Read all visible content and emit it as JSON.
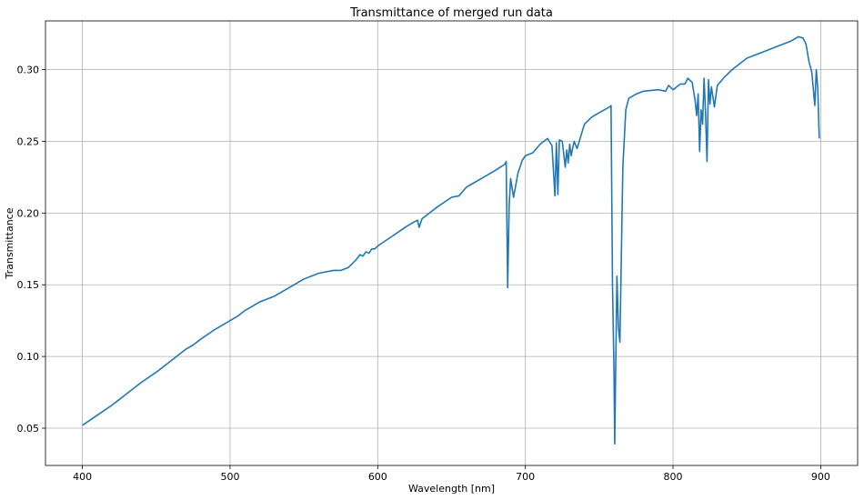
{
  "chart_data": {
    "type": "line",
    "title": "Transmittance of merged run data",
    "xlabel": "Wavelength [nm]",
    "ylabel": "Transmittance",
    "xlim": [
      375,
      925
    ],
    "ylim": [
      0.024,
      0.334
    ],
    "xticks": [
      400,
      500,
      600,
      700,
      800,
      900
    ],
    "xtick_labels": [
      "400",
      "500",
      "600",
      "700",
      "800",
      "900"
    ],
    "yticks": [
      0.05,
      0.1,
      0.15,
      0.2,
      0.25,
      0.3
    ],
    "ytick_labels": [
      "0.05",
      "0.10",
      "0.15",
      "0.20",
      "0.25",
      "0.30"
    ],
    "grid": true,
    "series": [
      {
        "color": "#1f77b4",
        "x": [
          400,
          410,
          420,
          430,
          440,
          450,
          460,
          470,
          475,
          480,
          490,
          500,
          505,
          510,
          520,
          530,
          540,
          550,
          560,
          570,
          575,
          580,
          585,
          588,
          590,
          592,
          594,
          596,
          598,
          600,
          610,
          620,
          625,
          627,
          628,
          630,
          640,
          650,
          655,
          660,
          665,
          670,
          680,
          686,
          687,
          688,
          689,
          690,
          692,
          695,
          698,
          700,
          705,
          710,
          715,
          718,
          719,
          720,
          721,
          722,
          723,
          725,
          727,
          728,
          729,
          730,
          731,
          733,
          735,
          740,
          745,
          750,
          757,
          758,
          759,
          760,
          760.5,
          761,
          762,
          763,
          764,
          766,
          768,
          770,
          775,
          780,
          790,
          795,
          797,
          800,
          805,
          808,
          810,
          813,
          815,
          816,
          817,
          818,
          819,
          820,
          821,
          822,
          823,
          824,
          825,
          826,
          828,
          830,
          835,
          840,
          850,
          860,
          870,
          880,
          885,
          888,
          890,
          892,
          894,
          896,
          897,
          898,
          899
        ],
        "values": [
          0.052,
          0.059,
          0.066,
          0.074,
          0.082,
          0.089,
          0.097,
          0.105,
          0.108,
          0.112,
          0.119,
          0.125,
          0.128,
          0.132,
          0.138,
          0.142,
          0.148,
          0.154,
          0.158,
          0.16,
          0.16,
          0.162,
          0.167,
          0.171,
          0.17,
          0.173,
          0.172,
          0.175,
          0.175,
          0.177,
          0.184,
          0.191,
          0.194,
          0.195,
          0.19,
          0.196,
          0.204,
          0.211,
          0.212,
          0.218,
          0.221,
          0.224,
          0.23,
          0.234,
          0.236,
          0.148,
          0.205,
          0.224,
          0.211,
          0.228,
          0.237,
          0.24,
          0.242,
          0.248,
          0.252,
          0.247,
          0.23,
          0.212,
          0.249,
          0.213,
          0.251,
          0.25,
          0.232,
          0.244,
          0.235,
          0.248,
          0.24,
          0.25,
          0.245,
          0.262,
          0.267,
          0.27,
          0.274,
          0.275,
          0.15,
          0.09,
          0.039,
          0.08,
          0.156,
          0.12,
          0.11,
          0.232,
          0.272,
          0.28,
          0.283,
          0.285,
          0.286,
          0.285,
          0.289,
          0.286,
          0.29,
          0.29,
          0.294,
          0.291,
          0.278,
          0.268,
          0.283,
          0.243,
          0.272,
          0.262,
          0.294,
          0.27,
          0.236,
          0.293,
          0.276,
          0.288,
          0.274,
          0.289,
          0.295,
          0.3,
          0.308,
          0.312,
          0.316,
          0.32,
          0.323,
          0.322,
          0.318,
          0.306,
          0.298,
          0.275,
          0.3,
          0.287,
          0.252
        ]
      }
    ]
  }
}
